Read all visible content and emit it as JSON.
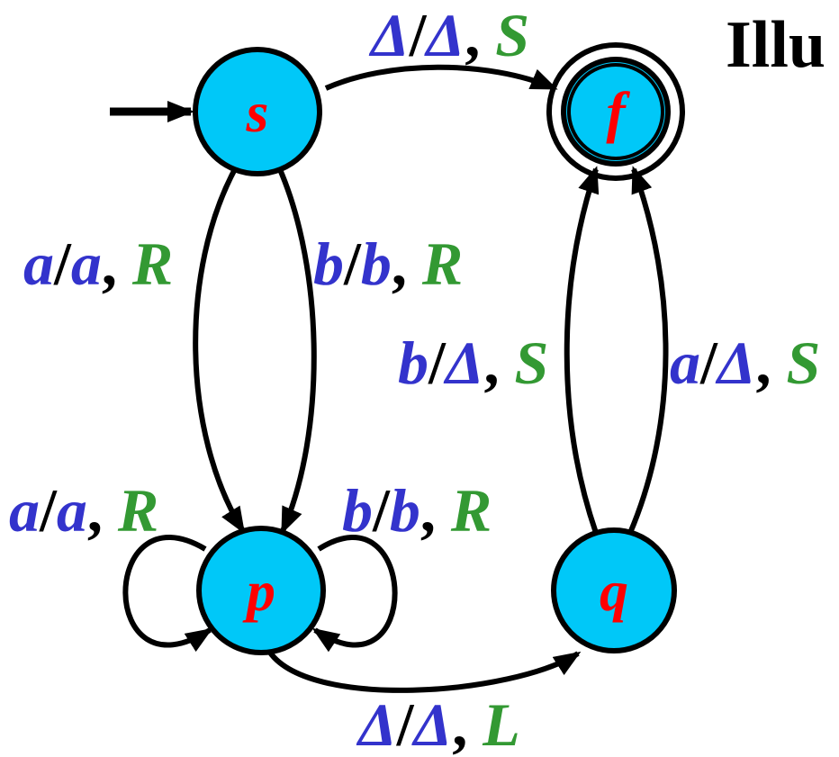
{
  "title": "Illu",
  "colors": {
    "state_fill": "#00c8f8",
    "state_label": "#ff0000",
    "read_write_symbol": "#3333cc",
    "move": "#339933",
    "line": "#000000"
  },
  "states": {
    "s": {
      "label": "s"
    },
    "f": {
      "label": "f"
    },
    "p": {
      "label": "p"
    },
    "q": {
      "label": "q"
    }
  },
  "transitions": {
    "s_to_f": {
      "read": "Δ",
      "write": "Δ",
      "move": "S"
    },
    "s_to_p_a": {
      "read": "a",
      "write": "a",
      "move": "R"
    },
    "s_to_p_b": {
      "read": "b",
      "write": "b",
      "move": "R"
    },
    "p_loop_a": {
      "read": "a",
      "write": "a",
      "move": "R"
    },
    "p_loop_b": {
      "read": "b",
      "write": "b",
      "move": "R"
    },
    "p_to_q": {
      "read": "Δ",
      "write": "Δ",
      "move": "L"
    },
    "q_to_f_b": {
      "read": "b",
      "write": "Δ",
      "move": "S"
    },
    "q_to_f_a": {
      "read": "a",
      "write": "Δ",
      "move": "S"
    }
  }
}
